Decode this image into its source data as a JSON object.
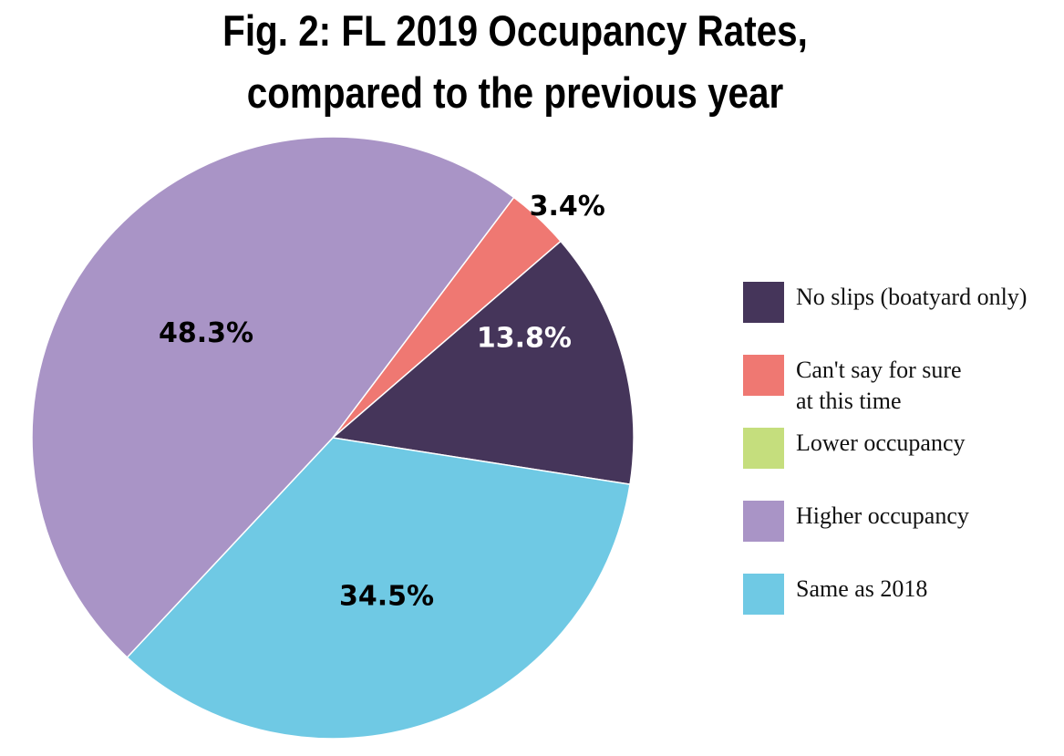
{
  "chart_data": {
    "type": "pie",
    "title": "Fig. 2: FL 2019 Occupancy Rates, compared to the previous year",
    "title_lines": [
      "Fig. 2: FL 2019 Occupancy Rates,",
      "compared to the previous year"
    ],
    "slices": [
      {
        "name": "Can't say for sure at this time",
        "value": 3.4,
        "label": "3.4%",
        "color": "#ef7872"
      },
      {
        "name": "No slips (boatyard only)",
        "value": 13.8,
        "label": "13.8%",
        "color": "#45355a"
      },
      {
        "name": "Lower occupancy",
        "value": 0,
        "label": "",
        "color": "#c5de7d"
      },
      {
        "name": "Same as 2018",
        "value": 34.5,
        "label": "34.5%",
        "color": "#6fc9e4"
      },
      {
        "name": "Higher occupancy",
        "value": 48.3,
        "label": "48.3%",
        "color": "#a994c6"
      }
    ],
    "legend": {
      "placement": "right",
      "items": [
        {
          "label": "No slips (boatyard only)",
          "color": "#45355a"
        },
        {
          "label": "Can't say for sure\nat this time",
          "color": "#ef7872"
        },
        {
          "label": "Lower occupancy",
          "color": "#c5de7d"
        },
        {
          "label": "Higher occupancy",
          "color": "#a994c6"
        },
        {
          "label": "Same as 2018",
          "color": "#6fc9e4"
        }
      ]
    }
  }
}
